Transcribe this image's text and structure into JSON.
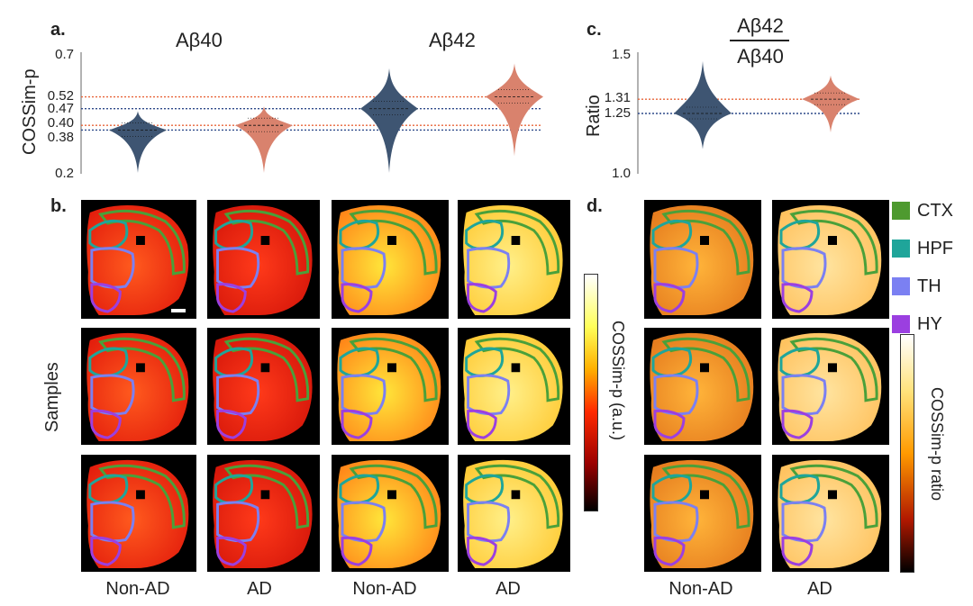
{
  "panels": {
    "a": "a.",
    "b": "b.",
    "c": "c.",
    "d": "d."
  },
  "titles": {
    "ab40": "Aβ40",
    "ab42": "Aβ42",
    "ratio_num": "Aβ42",
    "ratio_den": "Aβ40"
  },
  "ylabels": {
    "cossim": "COSSim-p",
    "ratio": "Ratio",
    "samples": "Samples"
  },
  "colorbar_labels": {
    "b": "COSSim-p (a.u.)",
    "d": "COSSim-p ratio"
  },
  "columns": {
    "b": [
      "Non-AD",
      "AD",
      "Non-AD",
      "AD"
    ],
    "d": [
      "Non-AD",
      "AD"
    ]
  },
  "legend": [
    {
      "label": "CTX",
      "color": "#4e9a2f"
    },
    {
      "label": "HPF",
      "color": "#1fa59a"
    },
    {
      "label": "TH",
      "color": "#7b80f2"
    },
    {
      "label": "HY",
      "color": "#9b3fe0"
    }
  ],
  "colors": {
    "nonad": "#3e5572",
    "ad": "#d9826d",
    "ref_orange": "#e8653a",
    "ref_blue": "#2f4a8a",
    "contour": "#4aa03a"
  },
  "chart_data": [
    {
      "type": "violin",
      "panel": "a",
      "title": "Aβ40 / Aβ42",
      "ylabel": "COSSim-p",
      "ylim": [
        0.2,
        0.7
      ],
      "yticks": [
        "0.7",
        "0.52",
        "0.47",
        "0.40",
        "0.38",
        "0.2"
      ],
      "series": [
        {
          "name": "Aβ40 Non-AD",
          "median": 0.38
        },
        {
          "name": "Aβ40 AD",
          "median": 0.4
        },
        {
          "name": "Aβ42 Non-AD",
          "median": 0.47
        },
        {
          "name": "Aβ42 AD",
          "median": 0.52
        }
      ]
    },
    {
      "type": "violin",
      "panel": "c",
      "title": "Aβ42 / Aβ40",
      "ylabel": "Ratio",
      "ylim": [
        1.0,
        1.5
      ],
      "yticks": [
        "1.5",
        "1.31",
        "1.25",
        "1.0"
      ],
      "series": [
        {
          "name": "Non-AD",
          "median": 1.25
        },
        {
          "name": "AD",
          "median": 1.31
        }
      ]
    }
  ]
}
